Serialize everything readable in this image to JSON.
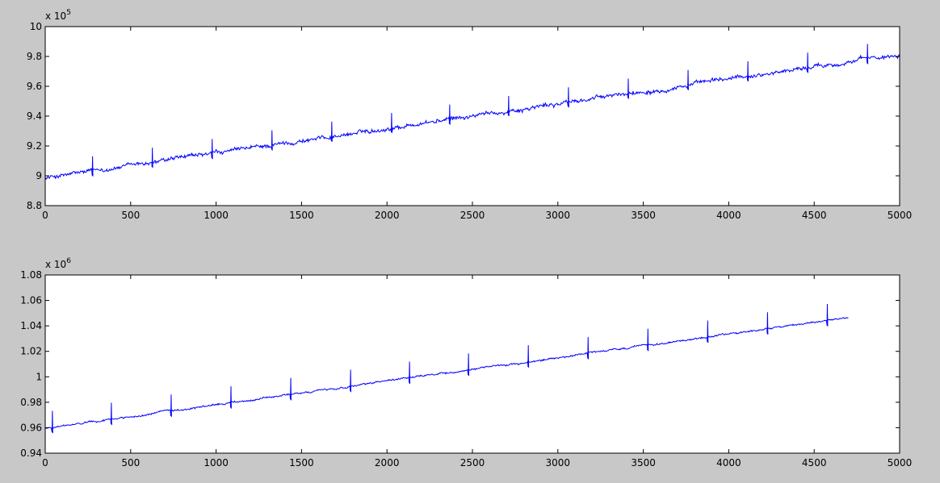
{
  "figure": {
    "background_color": "#c8c8c8",
    "axes_color": "#ffffff",
    "line_color": "#0000ff"
  },
  "chart_data": [
    {
      "type": "line",
      "title": "",
      "xlabel": "",
      "ylabel": "",
      "xlim": [
        0,
        5000
      ],
      "ylim": [
        880000,
        1000000
      ],
      "exponent_label": {
        "base": "x 10",
        "power": "5"
      },
      "x_ticks": [
        0,
        500,
        1000,
        1500,
        2000,
        2500,
        3000,
        3500,
        4000,
        4500,
        5000
      ],
      "x_tick_labels": [
        "0",
        "500",
        "1000",
        "1500",
        "2000",
        "2500",
        "3000",
        "3500",
        "4000",
        "4500",
        "5000"
      ],
      "y_ticks": [
        880000,
        900000,
        920000,
        940000,
        960000,
        980000,
        1000000
      ],
      "y_tick_labels": [
        "8.8",
        "9",
        "9.2",
        "9.4",
        "9.6",
        "9.8",
        "10"
      ],
      "grid": false,
      "series": [
        {
          "color": "#0000ff",
          "trend": {
            "x": [
              0,
              5000
            ],
            "y": [
              898500,
              981500
            ]
          },
          "noise_amplitude": 1800,
          "spike_height": 10000,
          "spikes_x": [
            275,
            625,
            975,
            1325,
            1675,
            2025,
            2365,
            2710,
            3060,
            3410,
            3760,
            4110,
            4460,
            4810
          ]
        }
      ]
    },
    {
      "type": "line",
      "title": "",
      "xlabel": "",
      "ylabel": "",
      "xlim": [
        0,
        5000
      ],
      "ylim": [
        940000,
        1080000
      ],
      "exponent_label": {
        "base": "x 10",
        "power": "6"
      },
      "x_ticks": [
        0,
        500,
        1000,
        1500,
        2000,
        2500,
        3000,
        3500,
        4000,
        4500,
        5000
      ],
      "x_tick_labels": [
        "0",
        "500",
        "1000",
        "1500",
        "2000",
        "2500",
        "3000",
        "3500",
        "4000",
        "4500",
        "5000"
      ],
      "y_ticks": [
        940000,
        960000,
        980000,
        1000000,
        1020000,
        1040000,
        1060000,
        1080000
      ],
      "y_tick_labels": [
        "0.94",
        "0.96",
        "0.98",
        "1",
        "1.02",
        "1.04",
        "1.06",
        "1.08"
      ],
      "grid": false,
      "series": [
        {
          "color": "#0000ff",
          "trend": {
            "x": [
              0,
              4700
            ],
            "y": [
              959500,
              1046500
            ]
          },
          "noise_amplitude": 900,
          "spike_height": 13000,
          "spikes_x": [
            40,
            385,
            735,
            1085,
            1435,
            1785,
            2130,
            2475,
            2825,
            3175,
            3525,
            3875,
            4225,
            4575
          ]
        }
      ]
    }
  ]
}
